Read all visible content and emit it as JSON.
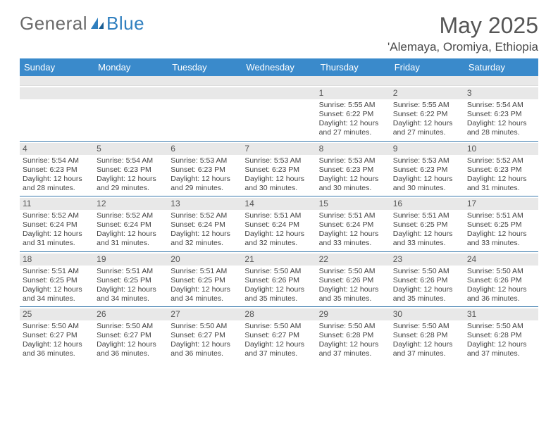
{
  "logo": {
    "text_a": "General",
    "text_b": "Blue"
  },
  "title": "May 2025",
  "location": "'Alemaya, Oromiya, Ethiopia",
  "colors": {
    "header_bg": "#3a8acb",
    "header_text": "#ffffff",
    "daynum_bg": "#e8e8e8",
    "week_border": "#3a7aad",
    "text": "#444444",
    "title_text": "#555555",
    "logo_gray": "#6a6a6a",
    "logo_blue": "#2f7fbf"
  },
  "day_names": [
    "Sunday",
    "Monday",
    "Tuesday",
    "Wednesday",
    "Thursday",
    "Friday",
    "Saturday"
  ],
  "weeks": [
    [
      {
        "n": "",
        "sr": "",
        "ss": "",
        "dl": ""
      },
      {
        "n": "",
        "sr": "",
        "ss": "",
        "dl": ""
      },
      {
        "n": "",
        "sr": "",
        "ss": "",
        "dl": ""
      },
      {
        "n": "",
        "sr": "",
        "ss": "",
        "dl": ""
      },
      {
        "n": "1",
        "sr": "5:55 AM",
        "ss": "6:22 PM",
        "dl": "12 hours and 27 minutes."
      },
      {
        "n": "2",
        "sr": "5:55 AM",
        "ss": "6:22 PM",
        "dl": "12 hours and 27 minutes."
      },
      {
        "n": "3",
        "sr": "5:54 AM",
        "ss": "6:23 PM",
        "dl": "12 hours and 28 minutes."
      }
    ],
    [
      {
        "n": "4",
        "sr": "5:54 AM",
        "ss": "6:23 PM",
        "dl": "12 hours and 28 minutes."
      },
      {
        "n": "5",
        "sr": "5:54 AM",
        "ss": "6:23 PM",
        "dl": "12 hours and 29 minutes."
      },
      {
        "n": "6",
        "sr": "5:53 AM",
        "ss": "6:23 PM",
        "dl": "12 hours and 29 minutes."
      },
      {
        "n": "7",
        "sr": "5:53 AM",
        "ss": "6:23 PM",
        "dl": "12 hours and 30 minutes."
      },
      {
        "n": "8",
        "sr": "5:53 AM",
        "ss": "6:23 PM",
        "dl": "12 hours and 30 minutes."
      },
      {
        "n": "9",
        "sr": "5:53 AM",
        "ss": "6:23 PM",
        "dl": "12 hours and 30 minutes."
      },
      {
        "n": "10",
        "sr": "5:52 AM",
        "ss": "6:23 PM",
        "dl": "12 hours and 31 minutes."
      }
    ],
    [
      {
        "n": "11",
        "sr": "5:52 AM",
        "ss": "6:24 PM",
        "dl": "12 hours and 31 minutes."
      },
      {
        "n": "12",
        "sr": "5:52 AM",
        "ss": "6:24 PM",
        "dl": "12 hours and 31 minutes."
      },
      {
        "n": "13",
        "sr": "5:52 AM",
        "ss": "6:24 PM",
        "dl": "12 hours and 32 minutes."
      },
      {
        "n": "14",
        "sr": "5:51 AM",
        "ss": "6:24 PM",
        "dl": "12 hours and 32 minutes."
      },
      {
        "n": "15",
        "sr": "5:51 AM",
        "ss": "6:24 PM",
        "dl": "12 hours and 33 minutes."
      },
      {
        "n": "16",
        "sr": "5:51 AM",
        "ss": "6:25 PM",
        "dl": "12 hours and 33 minutes."
      },
      {
        "n": "17",
        "sr": "5:51 AM",
        "ss": "6:25 PM",
        "dl": "12 hours and 33 minutes."
      }
    ],
    [
      {
        "n": "18",
        "sr": "5:51 AM",
        "ss": "6:25 PM",
        "dl": "12 hours and 34 minutes."
      },
      {
        "n": "19",
        "sr": "5:51 AM",
        "ss": "6:25 PM",
        "dl": "12 hours and 34 minutes."
      },
      {
        "n": "20",
        "sr": "5:51 AM",
        "ss": "6:25 PM",
        "dl": "12 hours and 34 minutes."
      },
      {
        "n": "21",
        "sr": "5:50 AM",
        "ss": "6:26 PM",
        "dl": "12 hours and 35 minutes."
      },
      {
        "n": "22",
        "sr": "5:50 AM",
        "ss": "6:26 PM",
        "dl": "12 hours and 35 minutes."
      },
      {
        "n": "23",
        "sr": "5:50 AM",
        "ss": "6:26 PM",
        "dl": "12 hours and 35 minutes."
      },
      {
        "n": "24",
        "sr": "5:50 AM",
        "ss": "6:26 PM",
        "dl": "12 hours and 36 minutes."
      }
    ],
    [
      {
        "n": "25",
        "sr": "5:50 AM",
        "ss": "6:27 PM",
        "dl": "12 hours and 36 minutes."
      },
      {
        "n": "26",
        "sr": "5:50 AM",
        "ss": "6:27 PM",
        "dl": "12 hours and 36 minutes."
      },
      {
        "n": "27",
        "sr": "5:50 AM",
        "ss": "6:27 PM",
        "dl": "12 hours and 36 minutes."
      },
      {
        "n": "28",
        "sr": "5:50 AM",
        "ss": "6:27 PM",
        "dl": "12 hours and 37 minutes."
      },
      {
        "n": "29",
        "sr": "5:50 AM",
        "ss": "6:28 PM",
        "dl": "12 hours and 37 minutes."
      },
      {
        "n": "30",
        "sr": "5:50 AM",
        "ss": "6:28 PM",
        "dl": "12 hours and 37 minutes."
      },
      {
        "n": "31",
        "sr": "5:50 AM",
        "ss": "6:28 PM",
        "dl": "12 hours and 37 minutes."
      }
    ]
  ],
  "labels": {
    "sunrise": "Sunrise:",
    "sunset": "Sunset:",
    "daylight": "Daylight:"
  }
}
